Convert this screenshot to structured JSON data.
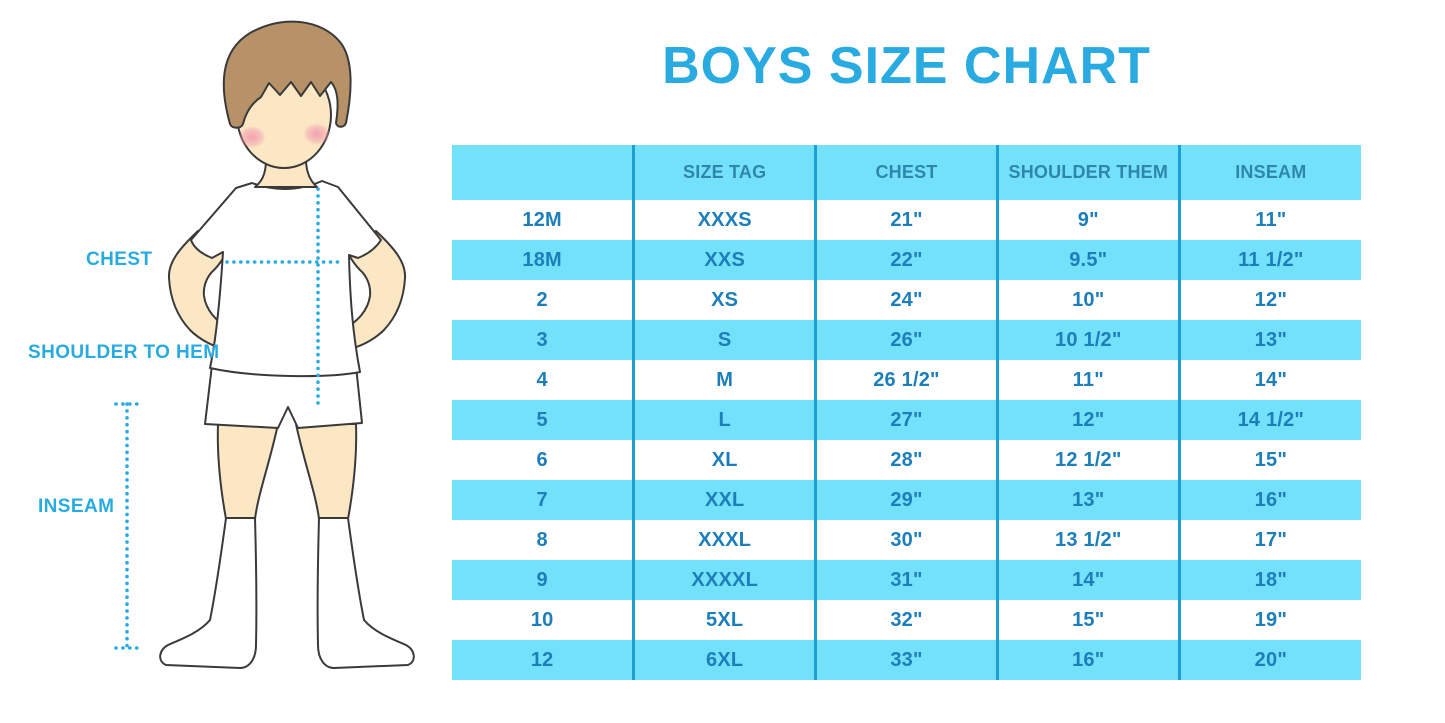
{
  "title": "BOYS SIZE CHART",
  "colors": {
    "accent_blue": "#29ABE2",
    "table_fill_light_blue": "#74E1FA",
    "table_divider_blue": "#1D9FD4",
    "header_text_blue": "#2F86AD",
    "cell_text_blue": "#1C7EBB",
    "skin": "#FBE7C4",
    "hair": "#B79269",
    "cheek_pink": "#F29BAF"
  },
  "diagram": {
    "labels": {
      "chest": "CHEST",
      "shoulder_to_hem": "SHOULDER TO HEM",
      "inseam": "INSEAM"
    }
  },
  "table": {
    "columns": [
      "",
      "SIZE TAG",
      "CHEST",
      "SHOULDER THEM",
      "INSEAM"
    ],
    "rows": [
      [
        "12M",
        "XXXS",
        "21\"",
        "9\"",
        "11\""
      ],
      [
        "18M",
        "XXS",
        "22\"",
        "9.5\"",
        "11 1/2\""
      ],
      [
        "2",
        "XS",
        "24\"",
        "10\"",
        "12\""
      ],
      [
        "3",
        "S",
        "26\"",
        "10 1/2\"",
        "13\""
      ],
      [
        "4",
        "M",
        "26 1/2\"",
        "11\"",
        "14\""
      ],
      [
        "5",
        "L",
        "27\"",
        "12\"",
        "14 1/2\""
      ],
      [
        "6",
        "XL",
        "28\"",
        "12 1/2\"",
        "15\""
      ],
      [
        "7",
        "XXL",
        "29\"",
        "13\"",
        "16\""
      ],
      [
        "8",
        "XXXL",
        "30\"",
        "13 1/2\"",
        "17\""
      ],
      [
        "9",
        "XXXXL",
        "31\"",
        "14\"",
        "18\""
      ],
      [
        "10",
        "5XL",
        "32\"",
        "15\"",
        "19\""
      ],
      [
        "12",
        "6XL",
        "33\"",
        "16\"",
        "20\""
      ]
    ]
  }
}
